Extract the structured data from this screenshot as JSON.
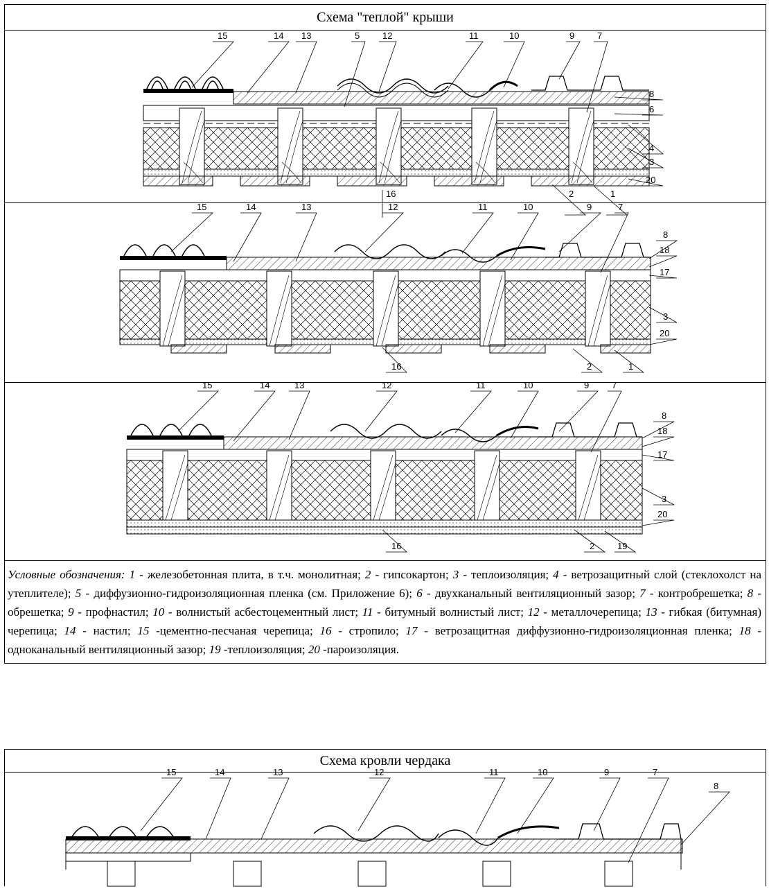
{
  "warm_roof": {
    "title": "Схема \"теплой\" крыши",
    "scheme1_labels": [
      "15",
      "14",
      "13",
      "5",
      "12",
      "11",
      "10",
      "9",
      "7",
      "8",
      "6",
      "4",
      "3",
      "20",
      "16",
      "2",
      "1"
    ],
    "scheme2_labels": [
      "15",
      "14",
      "13",
      "12",
      "11",
      "10",
      "9",
      "7",
      "8",
      "18",
      "17",
      "3",
      "20",
      "16",
      "2",
      "1"
    ],
    "scheme3_labels": [
      "15",
      "14",
      "13",
      "12",
      "11",
      "10",
      "9",
      "7",
      "8",
      "18",
      "17",
      "3",
      "20",
      "16",
      "2",
      "19"
    ],
    "legend": {
      "prefix": "Условные обозначения:",
      "items": [
        {
          "n": "1",
          "t": " - железобетонная плита, в т.ч. монолитная; "
        },
        {
          "n": "2",
          "t": " - гипсокартон; "
        },
        {
          "n": "3",
          "t": " - теплоизоляция; "
        },
        {
          "n": "4",
          "t": " - ветрозащитный слой (стеклохолст на утеплителе); "
        },
        {
          "n": "5",
          "t": " - диффузионно-гидроизоляционная пленка (см. Приложение 6); "
        },
        {
          "n": "6",
          "t": " - двухканальный вентиляционный зазор; "
        },
        {
          "n": "7",
          "t": " - контробрешетка; "
        },
        {
          "n": "8",
          "t": " - обрешетка; "
        },
        {
          "n": "9",
          "t": " - профнастил; "
        },
        {
          "n": "10",
          "t": " - волнистый асбестоцементный лист; "
        },
        {
          "n": "11",
          "t": " - битумный волнистый лист; "
        },
        {
          "n": "12",
          "t": " - металлочерепица; "
        },
        {
          "n": "13",
          "t": " - гибкая (битумная) черепица; "
        },
        {
          "n": "14",
          "t": " - настил; "
        },
        {
          "n": "15",
          "t": " -цементно-песчаная черепица; "
        },
        {
          "n": "16",
          "t": " - стропило; "
        },
        {
          "n": "17",
          "t": " - ветрозащитная диффузионно-гидроизоляционная пленка; "
        },
        {
          "n": "18",
          "t": " - одноканальный вентиляционный зазор; "
        },
        {
          "n": "19",
          "t": " -теплоизоляция; "
        },
        {
          "n": "20",
          "t": " -пароизоляция."
        }
      ]
    }
  },
  "attic_roof": {
    "title": "Схема кровли чердака",
    "scheme_labels": [
      "15",
      "14",
      "13",
      "12",
      "11",
      "10",
      "9",
      "7",
      "8"
    ]
  }
}
